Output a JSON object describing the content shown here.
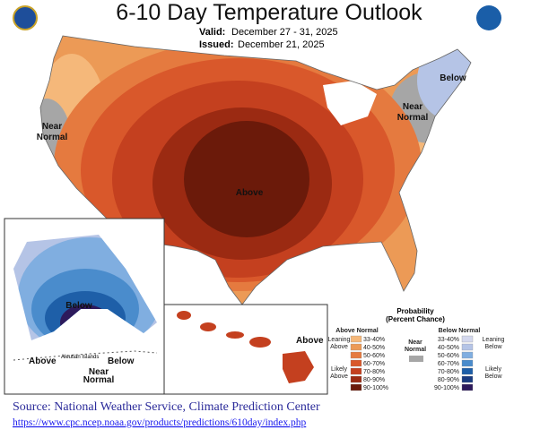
{
  "header": {
    "title": "6-10 Day Temperature Outlook",
    "valid_label": "Valid:",
    "valid": "December 27 - 31, 2025",
    "issued_label": "Issued:",
    "issued": "December 21, 2025"
  },
  "map_labels": {
    "above": "Above",
    "below": "Below",
    "near_normal_west": [
      "Near",
      "Normal"
    ],
    "near_normal_east": [
      "Near",
      "Normal"
    ]
  },
  "alaska": {
    "below": "Below",
    "above": "Above",
    "aleutian": "Aleutian Islands",
    "below_aleutian": "Below",
    "near_normal": [
      "Near",
      "Normal"
    ]
  },
  "hawaii": {
    "above": "Above"
  },
  "legend": {
    "title": [
      "Probability",
      "(Percent Chance)"
    ],
    "above_title": "Above Normal",
    "below_title": "Below Normal",
    "leaning_above": [
      "Leaning",
      "Above"
    ],
    "likely_above": [
      "Likely",
      "Above"
    ],
    "near_normal": [
      "Near",
      "Normal"
    ],
    "near_color": "#a6a6a6",
    "leaning_below": [
      "Leaning",
      "Below"
    ],
    "likely_below": [
      "Likely",
      "Below"
    ],
    "above": [
      {
        "range": "33-40%",
        "color": "#f5b87a"
      },
      {
        "range": "40-50%",
        "color": "#ec9a56"
      },
      {
        "range": "50-60%",
        "color": "#e57a3f"
      },
      {
        "range": "60-70%",
        "color": "#d9582b"
      },
      {
        "range": "70-80%",
        "color": "#c4401f"
      },
      {
        "range": "80-90%",
        "color": "#9b2a12"
      },
      {
        "range": "90-100%",
        "color": "#6b1a0a"
      }
    ],
    "below": [
      {
        "range": "33-40%",
        "color": "#d4d8ee"
      },
      {
        "range": "40-50%",
        "color": "#b5c4e6"
      },
      {
        "range": "50-60%",
        "color": "#80aee0"
      },
      {
        "range": "60-70%",
        "color": "#4a8ccc"
      },
      {
        "range": "70-80%",
        "color": "#1e5fa8"
      },
      {
        "range": "80-90%",
        "color": "#1a3b80"
      },
      {
        "range": "90-100%",
        "color": "#2d1a5c"
      }
    ]
  },
  "source": {
    "text": "Source: National Weather Service, Climate Prediction Center",
    "url": "https://www.cpc.ncep.noaa.gov/products/predictions/610day/index.php"
  }
}
